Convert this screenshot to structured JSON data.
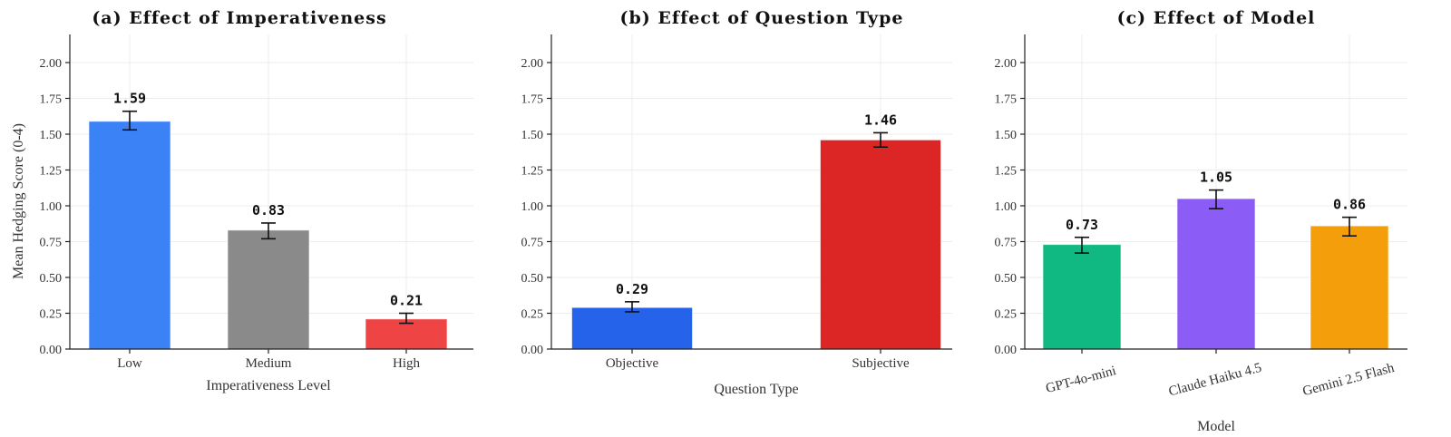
{
  "chart_data": [
    {
      "type": "bar",
      "title": "(a) Effect of Imperativeness",
      "xlabel": "Imperativeness Level",
      "ylabel": "Mean Hedging Score (0-4)",
      "categories": [
        "Low",
        "Medium",
        "High"
      ],
      "values": [
        1.59,
        0.83,
        0.21
      ],
      "value_labels": [
        "1.59",
        "0.83",
        "0.21"
      ],
      "error_low": [
        1.53,
        0.77,
        0.18
      ],
      "error_high": [
        1.66,
        0.88,
        0.25
      ],
      "colors": [
        "#3b82f6",
        "#8a8a8a",
        "#ef4444"
      ],
      "ylim": [
        0,
        2.2
      ],
      "yticks": [
        "0.00",
        "0.25",
        "0.50",
        "0.75",
        "1.00",
        "1.25",
        "1.50",
        "1.75",
        "2.00"
      ],
      "grid": true
    },
    {
      "type": "bar",
      "title": "(b) Effect of Question Type",
      "xlabel": "Question Type",
      "ylabel": "",
      "categories": [
        "Objective",
        "Subjective"
      ],
      "values": [
        0.29,
        1.46
      ],
      "value_labels": [
        "0.29",
        "1.46"
      ],
      "error_low": [
        0.26,
        1.41
      ],
      "error_high": [
        0.33,
        1.51
      ],
      "colors": [
        "#2563eb",
        "#dc2626"
      ],
      "ylim": [
        0,
        2.2
      ],
      "yticks": [
        "0.00",
        "0.25",
        "0.50",
        "0.75",
        "1.00",
        "1.25",
        "1.50",
        "1.75",
        "2.00"
      ],
      "grid": true
    },
    {
      "type": "bar",
      "title": "(c) Effect of Model",
      "xlabel": "Model",
      "ylabel": "",
      "categories": [
        "GPT-4o-mini",
        "Claude Haiku 4.5",
        "Gemini 2.5 Flash"
      ],
      "values": [
        0.73,
        1.05,
        0.86
      ],
      "value_labels": [
        "0.73",
        "1.05",
        "0.86"
      ],
      "error_low": [
        0.67,
        0.98,
        0.79
      ],
      "error_high": [
        0.78,
        1.11,
        0.92
      ],
      "colors": [
        "#10b981",
        "#8b5cf6",
        "#f59e0b"
      ],
      "ylim": [
        0,
        2.2
      ],
      "yticks": [
        "0.00",
        "0.25",
        "0.50",
        "0.75",
        "1.00",
        "1.25",
        "1.50",
        "1.75",
        "2.00"
      ],
      "grid": true
    }
  ],
  "panels": [
    {
      "title": "(a) Effect of Imperativeness",
      "xlabel": "Imperativeness Level",
      "ylabel": "Mean Hedging Score (0-4)"
    },
    {
      "title": "(b) Effect of Question Type",
      "xlabel": "Question Type"
    },
    {
      "title": "(c) Effect of Model",
      "xlabel": "Model"
    }
  ]
}
